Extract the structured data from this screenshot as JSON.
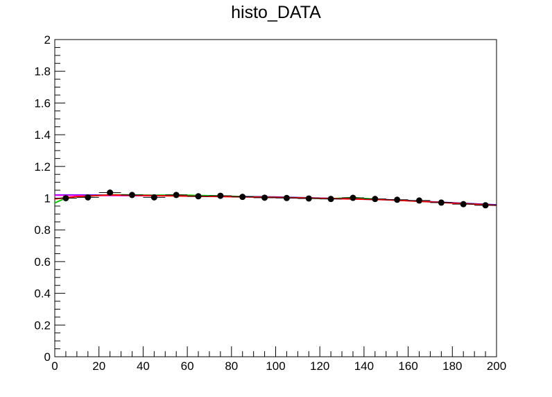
{
  "chart_data": {
    "type": "scatter",
    "title": "histo_DATA",
    "xlabel": "",
    "ylabel": "",
    "xlim": [
      0,
      200
    ],
    "ylim": [
      0,
      2
    ],
    "x_ticks": [
      "0",
      "20",
      "40",
      "60",
      "80",
      "100",
      "120",
      "140",
      "160",
      "180",
      "200"
    ],
    "y_ticks": [
      "0",
      "0.2",
      "0.4",
      "0.6",
      "0.8",
      "1",
      "1.2",
      "1.4",
      "1.6",
      "1.8",
      "2"
    ],
    "grid": false,
    "legend": "none",
    "points": {
      "x": [
        5,
        15,
        25,
        35,
        45,
        55,
        65,
        75,
        85,
        95,
        105,
        115,
        125,
        135,
        145,
        155,
        165,
        175,
        185,
        195
      ],
      "y": [
        1.0,
        1.005,
        1.035,
        1.02,
        1.005,
        1.02,
        1.012,
        1.015,
        1.008,
        1.003,
        1.001,
        0.998,
        0.995,
        1.002,
        0.995,
        0.99,
        0.985,
        0.972,
        0.962,
        0.955
      ],
      "x_error": 5,
      "y_error": 0.008,
      "color": "#000000"
    },
    "fit_lines": [
      {
        "color": "#0000ff",
        "x": [
          0,
          50,
          100,
          150,
          200
        ],
        "y": [
          1.02,
          1.018,
          1.007,
          0.99,
          0.958
        ]
      },
      {
        "color": "#ff00ff",
        "x": [
          0,
          50
        ],
        "y": [
          1.018,
          1.015
        ]
      },
      {
        "color": "#00cc00",
        "x": [
          0,
          5,
          10,
          15,
          25,
          35,
          45,
          55,
          65,
          75,
          85,
          95,
          105,
          115,
          125,
          135,
          145,
          150
        ],
        "y": [
          0.97,
          1.0,
          1.01,
          1.012,
          1.022,
          1.02,
          1.018,
          1.02,
          1.017,
          1.014,
          1.01,
          1.006,
          1.003,
          1.0,
          0.997,
          1.004,
          0.993,
          0.99
        ]
      },
      {
        "color": "#ff0000",
        "x": [
          0,
          10,
          25,
          50,
          100,
          150,
          175,
          200
        ],
        "y": [
          0.995,
          1.01,
          1.02,
          1.015,
          1.005,
          0.99,
          0.973,
          0.955
        ]
      }
    ]
  }
}
